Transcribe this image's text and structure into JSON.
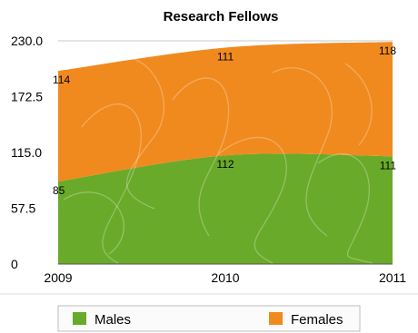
{
  "chart_data": {
    "type": "area",
    "stacked": true,
    "title": "Research Fellows",
    "xlabel": "",
    "ylabel": "",
    "categories": [
      "2009",
      "2010",
      "2011"
    ],
    "ylim": [
      0,
      230
    ],
    "yticks": [
      "0",
      "57.5",
      "115.0",
      "172.5",
      "230.0"
    ],
    "series": [
      {
        "name": "Males",
        "values": [
          85,
          112,
          111
        ],
        "color": "#6aaa2a"
      },
      {
        "name": "Females",
        "values": [
          114,
          111,
          118
        ],
        "color": "#f08a1e"
      }
    ],
    "legend_position": "bottom",
    "grid": false
  }
}
